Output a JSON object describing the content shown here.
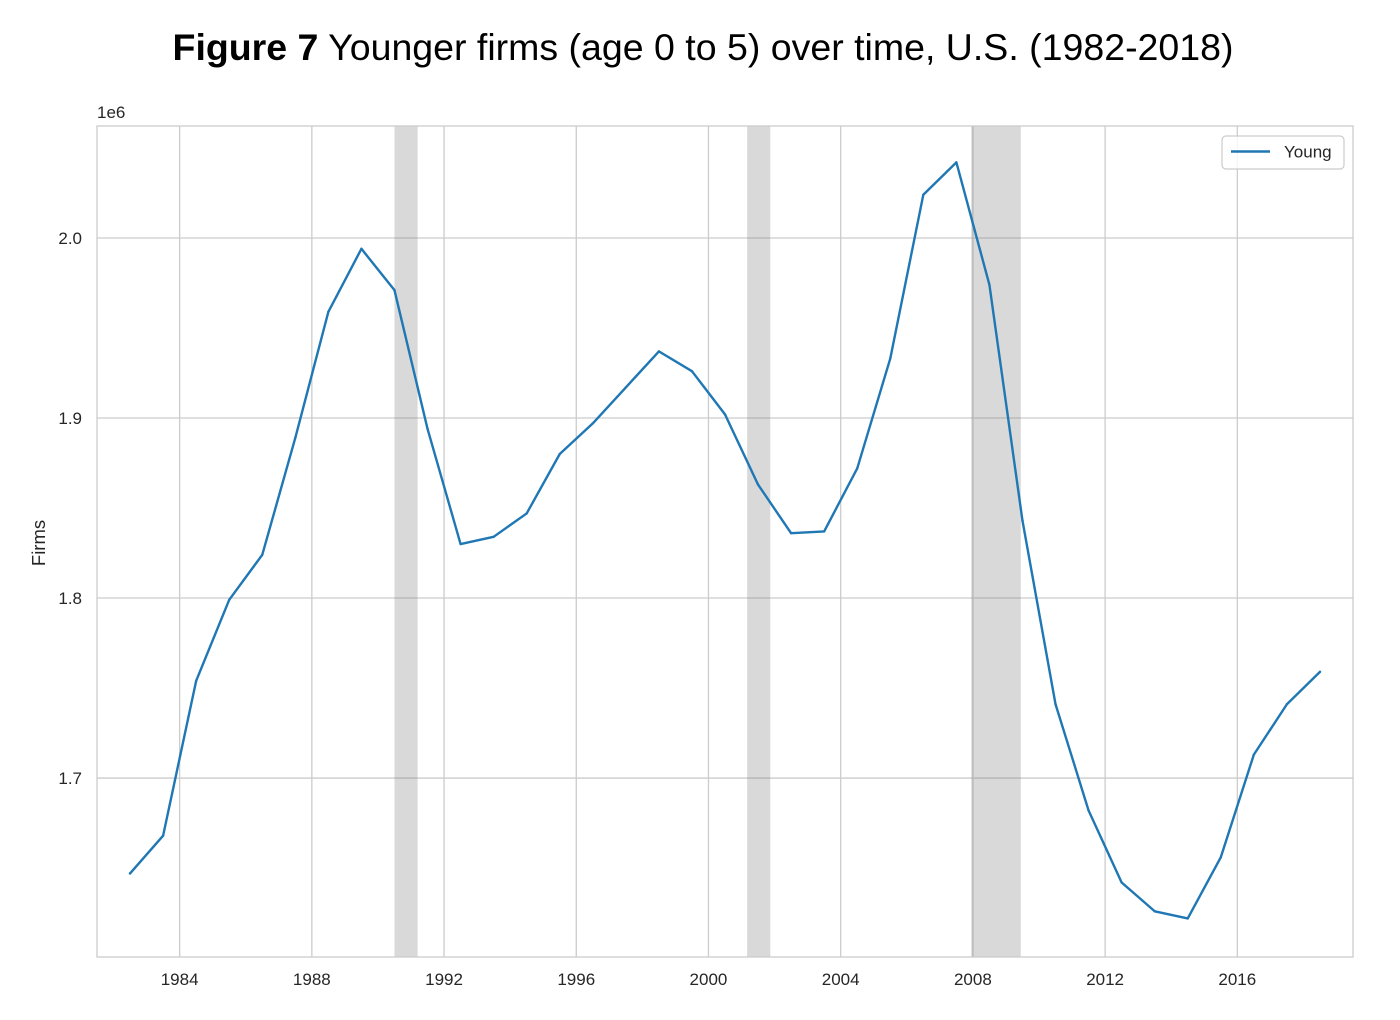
{
  "chart_data": {
    "type": "line",
    "figure_label": "Figure 7",
    "title": "Younger firms (age 0 to 5) over time, U.S. (1982-2018)",
    "ylabel": "Firms",
    "y_offset_label": "1e6",
    "x": [
      1982.5,
      1983.5,
      1984.5,
      1985.5,
      1986.5,
      1987.5,
      1988.5,
      1989.5,
      1990.5,
      1991.5,
      1992.5,
      1993.5,
      1994.5,
      1995.5,
      1996.5,
      1997.5,
      1998.5,
      1999.5,
      2000.5,
      2001.5,
      2002.5,
      2003.5,
      2004.5,
      2005.5,
      2006.5,
      2007.5,
      2008.5,
      2009.5,
      2010.5,
      2011.5,
      2012.5,
      2013.5,
      2014.5,
      2015.5,
      2016.5,
      2017.5,
      2018.5
    ],
    "series": [
      {
        "name": "Young",
        "color": "#1f77b4",
        "values": [
          1647000,
          1668000,
          1754000,
          1799000,
          1824000,
          1889000,
          1959000,
          1994000,
          1971000,
          1894000,
          1830000,
          1834000,
          1847000,
          1880000,
          1897000,
          1917000,
          1937000,
          1926000,
          1902000,
          1863000,
          1836000,
          1837000,
          1872000,
          1933000,
          2024000,
          2042000,
          1974000,
          1843000,
          1741000,
          1682000,
          1642000,
          1626000,
          1622000,
          1656000,
          1713000,
          1741000,
          1759000
        ]
      }
    ],
    "xlim": [
      1981.5,
      2019.5
    ],
    "ylim": [
      1600600,
      2062200
    ],
    "x_ticks": {
      "values": [
        1984,
        1988,
        1992,
        1996,
        2000,
        2004,
        2008,
        2012,
        2016
      ],
      "labels": [
        "1984",
        "1988",
        "1992",
        "1996",
        "2000",
        "2004",
        "2008",
        "2012",
        "2016"
      ]
    },
    "y_ticks": {
      "values": [
        1700000,
        1800000,
        1900000,
        2000000
      ],
      "labels": [
        "1.7",
        "1.8",
        "1.9",
        "2.0"
      ]
    },
    "shaded_x_ranges": [
      [
        1990.5,
        1991.2
      ],
      [
        2001.17,
        2001.87
      ],
      [
        2007.95,
        2009.45
      ]
    ],
    "shade_color": "#808080",
    "grid": true,
    "legend": {
      "position": "top-right"
    }
  }
}
